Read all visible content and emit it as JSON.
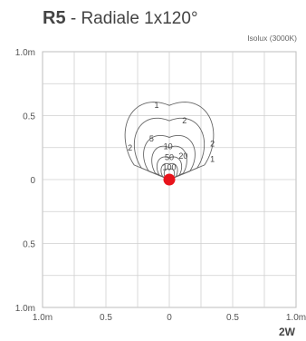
{
  "header": {
    "code": "R5",
    "title": "- Radiale 1x120°",
    "subtitle": "Isolux (3000K)",
    "power": "2W"
  },
  "chart_data": {
    "type": "contour",
    "title": "R5 - Radiale 1x120°",
    "subtitle": "Isolux (3000K)",
    "xlim": [
      -1.0,
      1.0
    ],
    "ylim": [
      -1.0,
      1.0
    ],
    "grid": true,
    "x_ticks": [
      {
        "v": -1.0,
        "label": "1.0m"
      },
      {
        "v": -0.5,
        "label": "0.5"
      },
      {
        "v": 0,
        "label": "0"
      },
      {
        "v": 0.5,
        "label": "0.5"
      },
      {
        "v": 1.0,
        "label": "1.0m"
      }
    ],
    "y_ticks": [
      {
        "v": 1.0,
        "label": "1.0m"
      },
      {
        "v": 0.5,
        "label": "0.5"
      },
      {
        "v": 0,
        "label": "0"
      },
      {
        "v": -0.5,
        "label": "0.5"
      },
      {
        "v": -1.0,
        "label": "1.0m"
      }
    ],
    "source": {
      "x": 0,
      "y": 0,
      "color": "#e8141c"
    },
    "contours": [
      {
        "label": "1",
        "height": 0.58,
        "halfwidth": 0.43,
        "label_pos": [
          -0.1,
          0.58
        ]
      },
      {
        "label": "2",
        "height": 0.46,
        "halfwidth": 0.34,
        "label_pos": [
          0.12,
          0.46
        ]
      },
      {
        "label": "5",
        "height": 0.33,
        "halfwidth": 0.25,
        "label_pos": [
          -0.14,
          0.32
        ]
      },
      {
        "label": "10",
        "height": 0.25,
        "halfwidth": 0.17,
        "label_pos": [
          -0.01,
          0.26
        ]
      },
      {
        "label": "20",
        "height": 0.17,
        "halfwidth": 0.12,
        "label_pos": [
          0.11,
          0.185
        ]
      },
      {
        "label": "50",
        "height": 0.12,
        "halfwidth": 0.08,
        "label_pos": [
          0.0,
          0.175
        ]
      },
      {
        "label": "100",
        "height": 0.08,
        "halfwidth": 0.05,
        "label_pos": [
          0.0,
          0.095
        ]
      }
    ],
    "extra_labels": [
      {
        "text": "2",
        "pos": [
          -0.31,
          0.25
        ]
      },
      {
        "text": "2",
        "pos": [
          0.34,
          0.28
        ]
      },
      {
        "text": "1",
        "pos": [
          0.34,
          0.16
        ]
      }
    ]
  }
}
